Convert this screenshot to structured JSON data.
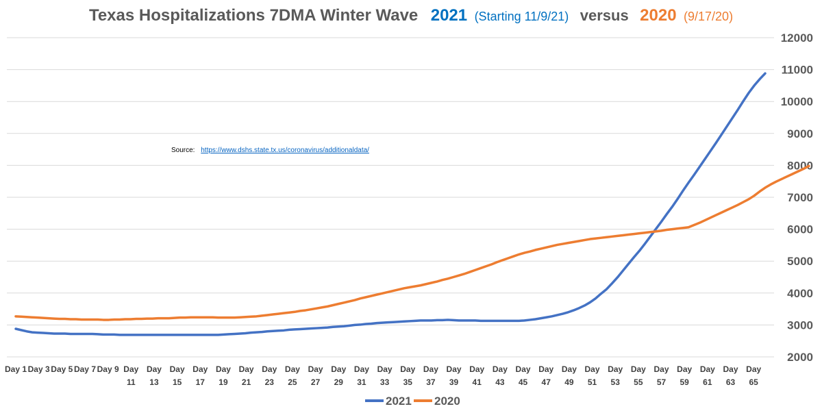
{
  "chart_data": {
    "type": "line",
    "title": {
      "main": "Texas Hospitalizations 7DMA Winter Wave",
      "s1_label": "2021",
      "s1_note": "(Starting 11/9/21)",
      "versus": "versus",
      "s2_label": "2020",
      "s2_note": "(9/17/20)"
    },
    "source": {
      "label": "Source:",
      "url": "https://www.dshs.state.tx.us/coronavirus/additionaldata/"
    },
    "ylim": [
      2000,
      12000
    ],
    "yticks": [
      "2000",
      "3000",
      "4000",
      "5000",
      "6000",
      "7000",
      "8000",
      "9000",
      "10000",
      "11000",
      "12000"
    ],
    "xtick_labels": [
      "Day 1",
      "Day 3",
      "Day 5",
      "Day 7",
      "Day 9",
      "Day 11",
      "Day 13",
      "Day 15",
      "Day 17",
      "Day 19",
      "Day 21",
      "Day 23",
      "Day 25",
      "Day 27",
      "Day 29",
      "Day 31",
      "Day 33",
      "Day 35",
      "Day 37",
      "Day 39",
      "Day 41",
      "Day 43",
      "Day 45",
      "Day 47",
      "Day 49",
      "Day 51",
      "Day 53",
      "Day 55",
      "Day 57",
      "Day 59",
      "Day 61",
      "Day 63",
      "Day 65"
    ],
    "grid": true,
    "legend_position": "bottom",
    "colors": {
      "2021": "#4472c4",
      "2020": "#ed7d31",
      "title_2021": "#0070c0",
      "title_main": "#595959"
    },
    "series": [
      {
        "name": "2021",
        "values": [
          2880,
          2840,
          2800,
          2770,
          2760,
          2750,
          2740,
          2730,
          2730,
          2730,
          2720,
          2720,
          2720,
          2720,
          2720,
          2710,
          2700,
          2700,
          2700,
          2690,
          2690,
          2690,
          2690,
          2690,
          2690,
          2690,
          2690,
          2690,
          2690,
          2690,
          2690,
          2690,
          2690,
          2690,
          2690,
          2690,
          2690,
          2690,
          2700,
          2710,
          2720,
          2730,
          2740,
          2760,
          2770,
          2780,
          2800,
          2810,
          2820,
          2830,
          2850,
          2860,
          2870,
          2880,
          2890,
          2900,
          2910,
          2920,
          2940,
          2950,
          2960,
          2980,
          3000,
          3010,
          3030,
          3040,
          3060,
          3070,
          3080,
          3090,
          3100,
          3110,
          3120,
          3130,
          3140,
          3140,
          3140,
          3150,
          3150,
          3160,
          3150,
          3140,
          3140,
          3140,
          3140,
          3130,
          3130,
          3130,
          3130,
          3130,
          3130,
          3130,
          3130,
          3140,
          3160,
          3180,
          3210,
          3240,
          3270,
          3310,
          3350,
          3400,
          3460,
          3530,
          3610,
          3710,
          3830,
          3980,
          4120,
          4300,
          4490,
          4700,
          4910,
          5120,
          5320,
          5540,
          5770,
          6000,
          6230,
          6470,
          6700,
          6950,
          7210,
          7460,
          7700,
          7950,
          8200,
          8450,
          8700,
          8960,
          9220,
          9480,
          9740,
          10010,
          10270,
          10500,
          10700,
          10880
        ]
      },
      {
        "name": "2020",
        "values": [
          3270,
          3260,
          3250,
          3240,
          3230,
          3220,
          3210,
          3200,
          3190,
          3190,
          3180,
          3180,
          3170,
          3170,
          3170,
          3170,
          3160,
          3160,
          3170,
          3170,
          3180,
          3180,
          3190,
          3190,
          3200,
          3200,
          3210,
          3210,
          3210,
          3220,
          3230,
          3230,
          3240,
          3240,
          3240,
          3240,
          3240,
          3230,
          3230,
          3230,
          3230,
          3240,
          3250,
          3260,
          3270,
          3290,
          3310,
          3330,
          3350,
          3370,
          3390,
          3410,
          3440,
          3460,
          3490,
          3520,
          3550,
          3580,
          3620,
          3660,
          3700,
          3740,
          3780,
          3830,
          3870,
          3910,
          3950,
          3990,
          4030,
          4070,
          4110,
          4150,
          4180,
          4210,
          4240,
          4280,
          4320,
          4360,
          4410,
          4450,
          4500,
          4550,
          4600,
          4660,
          4720,
          4780,
          4840,
          4900,
          4970,
          5030,
          5090,
          5150,
          5210,
          5260,
          5300,
          5350,
          5390,
          5430,
          5470,
          5510,
          5540,
          5570,
          5600,
          5630,
          5660,
          5690,
          5710,
          5730,
          5750,
          5770,
          5790,
          5810,
          5830,
          5850,
          5870,
          5890,
          5910,
          5930,
          5950,
          5980,
          6000,
          6020,
          6040,
          6060,
          6130,
          6200,
          6280,
          6360,
          6440,
          6520,
          6600,
          6680,
          6760,
          6850,
          6940,
          7050,
          7180,
          7300,
          7400,
          7490,
          7570,
          7650,
          7730,
          7810,
          7890,
          7980
        ]
      }
    ]
  }
}
